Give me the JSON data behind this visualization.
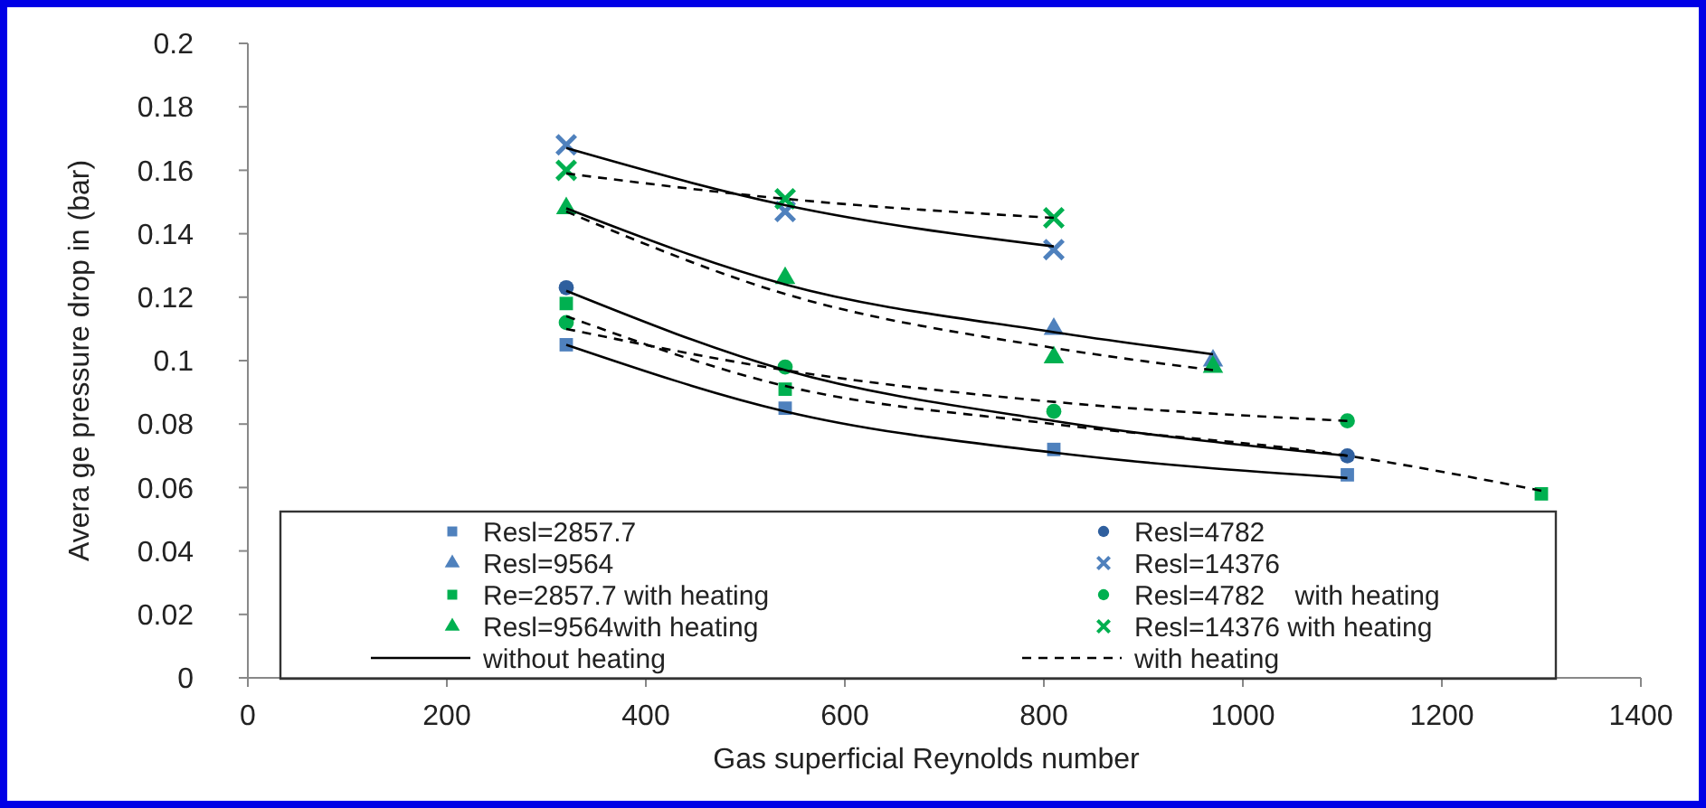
{
  "chart_data": {
    "type": "scatter",
    "xlabel": "Gas superficial Reynolds number",
    "ylabel": "Avera ge pressure drop in (bar)",
    "xlim": [
      0,
      1400
    ],
    "xticks": [
      0,
      200,
      400,
      600,
      800,
      1000,
      1200,
      1400
    ],
    "ylim": [
      0,
      0.2
    ],
    "yticks": [
      0,
      0.02,
      0.04,
      0.06,
      0.08,
      0.1,
      0.12,
      0.14,
      0.16,
      0.18,
      0.2
    ],
    "grid": false,
    "legend": "bottom",
    "series": [
      {
        "name": "Resl=2857.7",
        "type": "scatter",
        "marker": "square",
        "color": "#4f81bd",
        "x": [
          320,
          540,
          810,
          1105
        ],
        "values": [
          0.105,
          0.085,
          0.072,
          0.064
        ]
      },
      {
        "name": "Resl=4782",
        "type": "scatter",
        "marker": "circle",
        "color": "#2f5f9e",
        "x": [
          320,
          1105
        ],
        "values": [
          0.123,
          0.07
        ]
      },
      {
        "name": "Resl=9564",
        "type": "scatter",
        "marker": "triangle",
        "color": "#4f81bd",
        "x": [
          810,
          970
        ],
        "values": [
          0.11,
          0.1
        ]
      },
      {
        "name": "Resl=14376",
        "type": "scatter",
        "marker": "cross",
        "color": "#4f81bd",
        "x": [
          320,
          540,
          810
        ],
        "values": [
          0.168,
          0.147,
          0.135
        ]
      },
      {
        "name": "Re=2857.7 with heating",
        "type": "scatter",
        "marker": "square",
        "color": "#00b050",
        "x": [
          320,
          540,
          1300
        ],
        "values": [
          0.118,
          0.091,
          0.058
        ]
      },
      {
        "name": "Resl=4782    with heating",
        "type": "scatter",
        "marker": "circle",
        "color": "#00b050",
        "x": [
          320,
          540,
          810,
          1105
        ],
        "values": [
          0.112,
          0.098,
          0.084,
          0.081
        ]
      },
      {
        "name": "Resl=9564with heating",
        "type": "scatter",
        "marker": "triangle",
        "color": "#00b050",
        "x": [
          320,
          540,
          810,
          970
        ],
        "values": [
          0.148,
          0.126,
          0.101,
          0.098
        ]
      },
      {
        "name": "Resl=14376 with heating",
        "type": "scatter",
        "marker": "cross",
        "color": "#00b050",
        "x": [
          320,
          540,
          810
        ],
        "values": [
          0.16,
          0.151,
          0.145
        ]
      },
      {
        "name": "without heating",
        "type": "line",
        "line_style": "solid",
        "color": "#000000",
        "x": [
          320,
          540,
          810,
          1105
        ],
        "values": [
          0.105,
          0.084,
          0.071,
          0.063
        ]
      },
      {
        "name": "with heating",
        "type": "line",
        "line_style": "dashed",
        "color": "#000000",
        "x": [
          320,
          540,
          810,
          1105,
          1300
        ],
        "values": [
          0.114,
          0.092,
          0.08,
          0.07,
          0.059
        ]
      },
      {
        "type": "line",
        "line_style": "solid",
        "color": "#000000",
        "x": [
          320,
          540,
          810,
          1105
        ],
        "values": [
          0.122,
          0.097,
          0.081,
          0.07
        ]
      },
      {
        "type": "line",
        "line_style": "dashed",
        "color": "#000000",
        "x": [
          320,
          540,
          810,
          1105
        ],
        "values": [
          0.11,
          0.097,
          0.087,
          0.081
        ]
      },
      {
        "type": "line",
        "line_style": "solid",
        "color": "#000000",
        "x": [
          320,
          540,
          810,
          970
        ],
        "values": [
          0.148,
          0.124,
          0.109,
          0.102
        ]
      },
      {
        "type": "line",
        "line_style": "dashed",
        "color": "#000000",
        "x": [
          320,
          540,
          810,
          970
        ],
        "values": [
          0.147,
          0.121,
          0.104,
          0.097
        ]
      },
      {
        "type": "line",
        "line_style": "solid",
        "color": "#000000",
        "x": [
          320,
          540,
          810
        ],
        "values": [
          0.167,
          0.149,
          0.136
        ]
      },
      {
        "type": "line",
        "line_style": "dashed",
        "color": "#000000",
        "x": [
          320,
          540,
          810
        ],
        "values": [
          0.159,
          0.151,
          0.145
        ]
      }
    ]
  }
}
